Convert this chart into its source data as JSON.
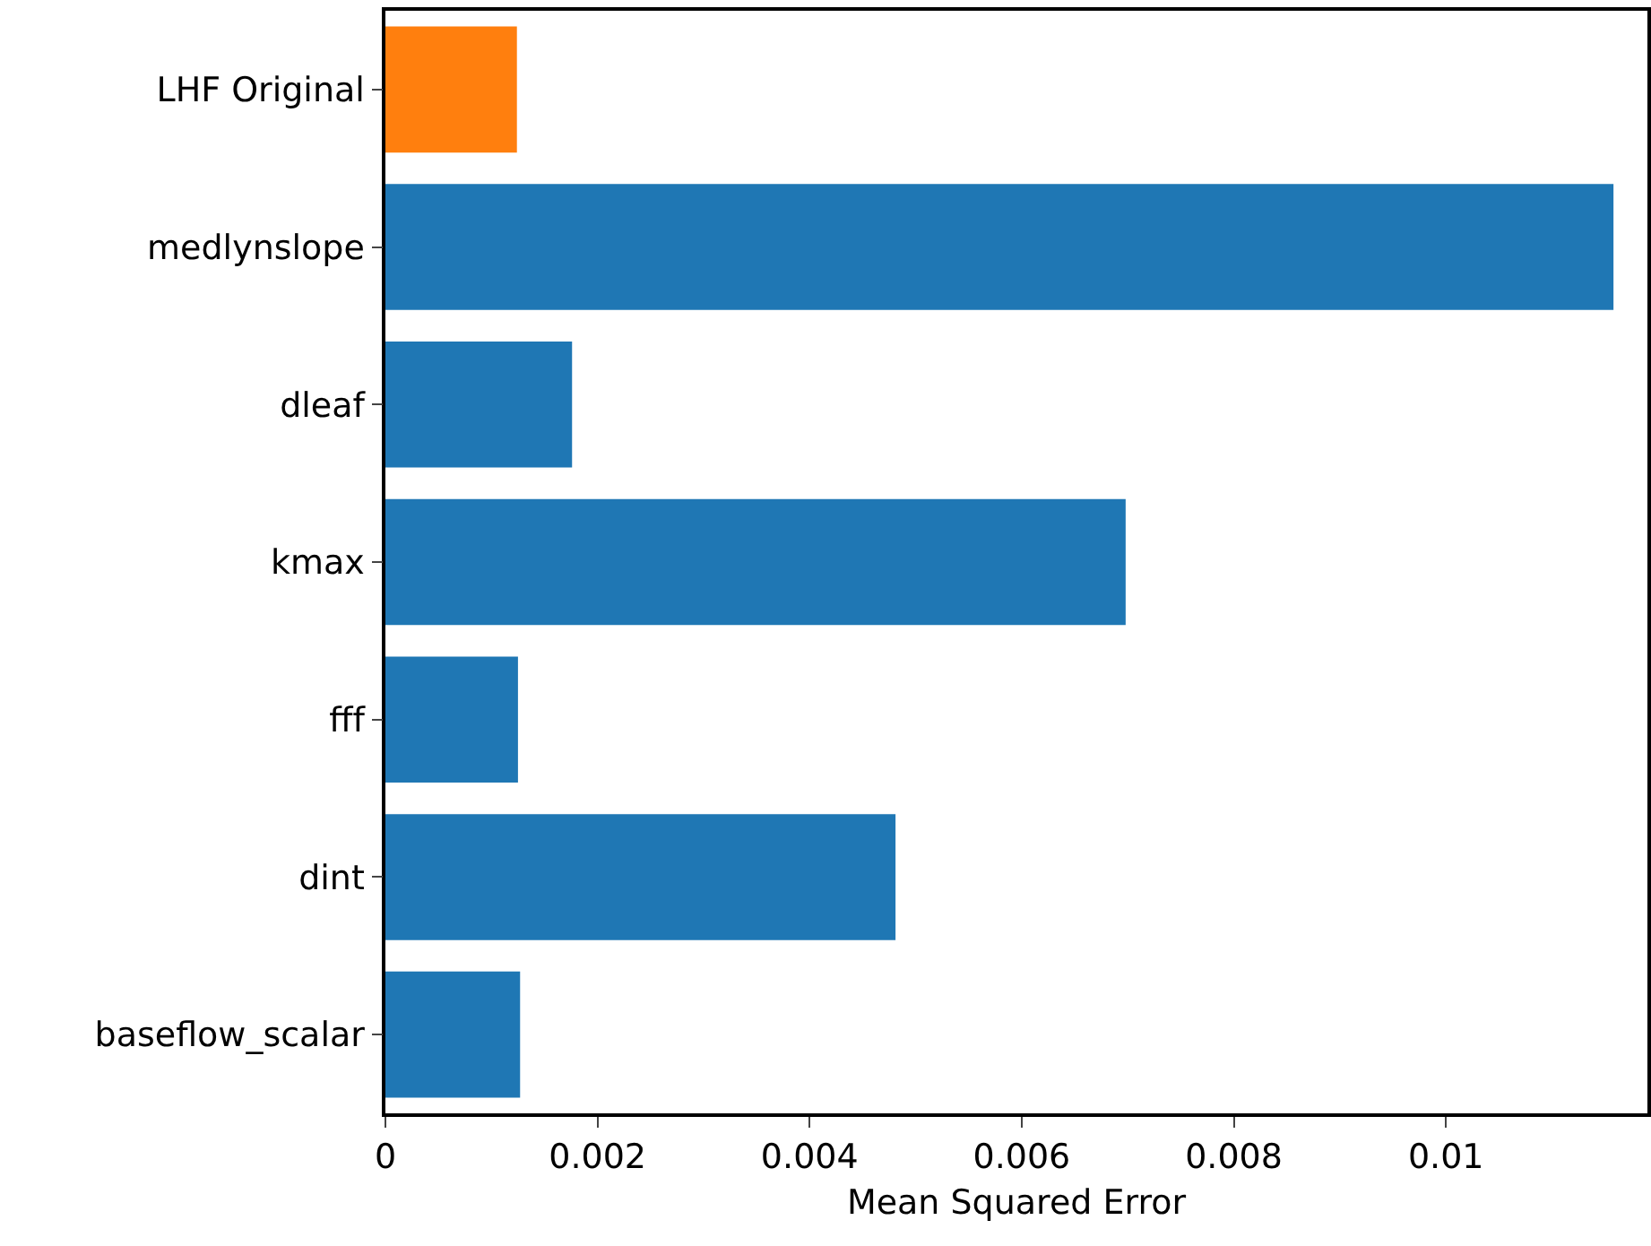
{
  "chart_data": {
    "type": "bar",
    "orientation": "horizontal",
    "xlabel": "Mean Squared Error",
    "categories": [
      "LHF Original",
      "medlynslope",
      "dleaf",
      "kmax",
      "fff",
      "dint",
      "baseflow_scalar"
    ],
    "values": [
      0.00124,
      0.01158,
      0.00176,
      0.00698,
      0.00125,
      0.00481,
      0.00127
    ],
    "colors": [
      "#ff7f0e",
      "#1f77b4",
      "#1f77b4",
      "#1f77b4",
      "#1f77b4",
      "#1f77b4",
      "#1f77b4"
    ],
    "xlim": [
      0,
      0.0119
    ],
    "xticks": [
      0,
      0.002,
      0.004,
      0.006,
      0.008,
      0.01
    ],
    "grid": false
  }
}
